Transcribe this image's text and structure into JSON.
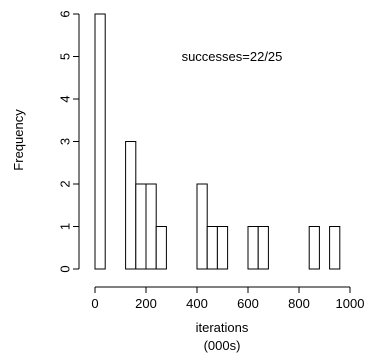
{
  "chart_data": {
    "type": "bar",
    "subtype": "histogram",
    "title": "",
    "xlabel_lines": [
      "iterations",
      "(000s)"
    ],
    "ylabel": "Frequency",
    "annotation": "successes=22/25",
    "bin_width": 40,
    "bins": [
      {
        "start": 0,
        "end": 40,
        "count": 6
      },
      {
        "start": 40,
        "end": 80,
        "count": 0
      },
      {
        "start": 80,
        "end": 120,
        "count": 0
      },
      {
        "start": 120,
        "end": 160,
        "count": 3
      },
      {
        "start": 160,
        "end": 200,
        "count": 2
      },
      {
        "start": 200,
        "end": 240,
        "count": 2
      },
      {
        "start": 240,
        "end": 280,
        "count": 1
      },
      {
        "start": 280,
        "end": 320,
        "count": 0
      },
      {
        "start": 320,
        "end": 360,
        "count": 0
      },
      {
        "start": 360,
        "end": 400,
        "count": 0
      },
      {
        "start": 400,
        "end": 440,
        "count": 2
      },
      {
        "start": 440,
        "end": 480,
        "count": 1
      },
      {
        "start": 480,
        "end": 520,
        "count": 1
      },
      {
        "start": 520,
        "end": 560,
        "count": 0
      },
      {
        "start": 560,
        "end": 600,
        "count": 0
      },
      {
        "start": 600,
        "end": 640,
        "count": 1
      },
      {
        "start": 640,
        "end": 680,
        "count": 1
      },
      {
        "start": 680,
        "end": 720,
        "count": 0
      },
      {
        "start": 720,
        "end": 760,
        "count": 0
      },
      {
        "start": 760,
        "end": 800,
        "count": 0
      },
      {
        "start": 800,
        "end": 840,
        "count": 0
      },
      {
        "start": 840,
        "end": 880,
        "count": 1
      },
      {
        "start": 880,
        "end": 920,
        "count": 0
      },
      {
        "start": 920,
        "end": 960,
        "count": 1
      }
    ],
    "xlim": [
      0,
      1000
    ],
    "ylim": [
      0,
      6
    ],
    "xticks": [
      0,
      200,
      400,
      600,
      800,
      1000
    ],
    "yticks": [
      0,
      1,
      2,
      3,
      4,
      5,
      6
    ],
    "grid": false,
    "colors": {
      "bar_fill": "#ffffff",
      "bar_stroke": "#000000"
    }
  }
}
